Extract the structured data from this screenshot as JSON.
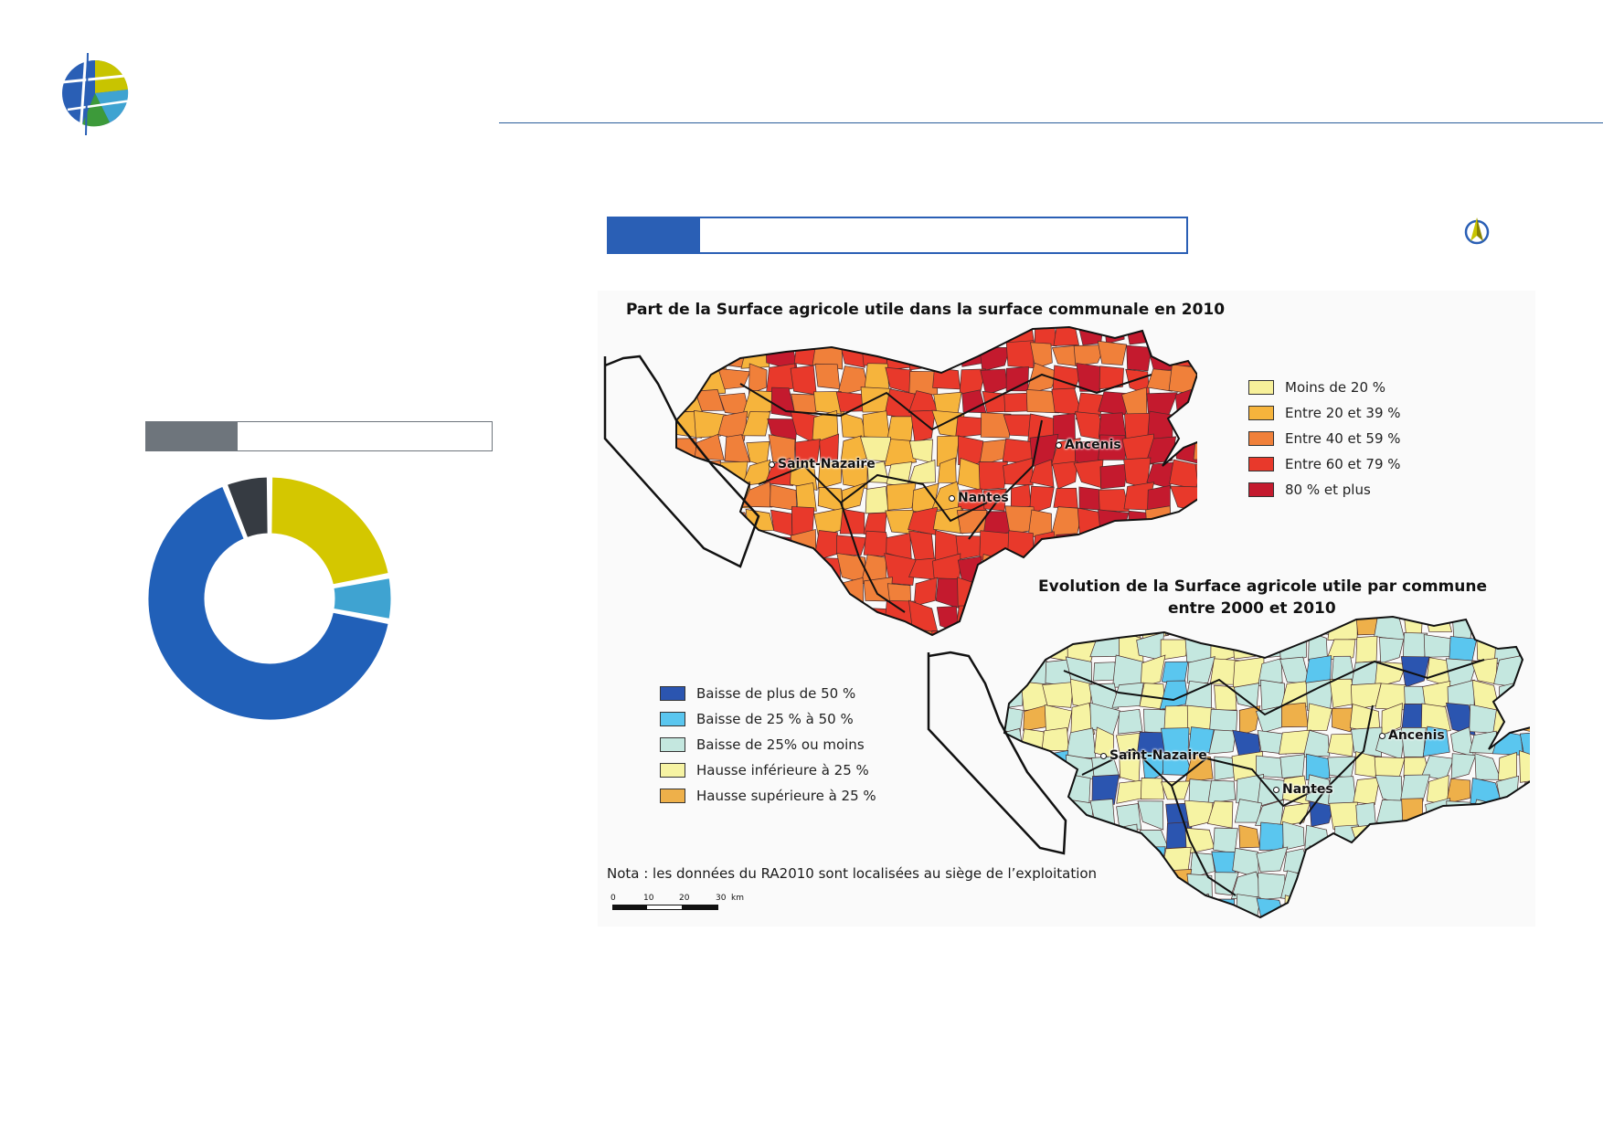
{
  "colors": {
    "header_rule": "#2a5d9a",
    "tag_blue": "#2a5fb5",
    "tag_grey": "#6e757c"
  },
  "donut": {
    "slices": [
      {
        "value": 22,
        "color": "#d4c700"
      },
      {
        "value": 6,
        "color": "#3fa3d1"
      },
      {
        "value": 66,
        "color": "#2160b8"
      },
      {
        "value": 6,
        "color": "#363b42"
      }
    ]
  },
  "map1": {
    "title": "Part de la Surface agricole utile dans la surface communale en 2010",
    "legend": [
      {
        "label": "Moins de 20 %",
        "color": "#f7f09a"
      },
      {
        "label": "Entre 20 et 39 %",
        "color": "#f6b43c"
      },
      {
        "label": "Entre 40 et 59 %",
        "color": "#f0803a"
      },
      {
        "label": "Entre 60 et 79 %",
        "color": "#e8392b"
      },
      {
        "label": "80 % et plus",
        "color": "#c41a2e"
      }
    ],
    "cities": {
      "saint_nazaire": "Saint-Nazaire",
      "nantes": "Nantes",
      "ancenis": "Ancenis"
    }
  },
  "map2": {
    "title_line1": "Evolution de la Surface agricole utile par commune",
    "title_line2": "entre 2000 et 2010",
    "legend": [
      {
        "label": "Baisse de plus de 50 %",
        "color": "#2b55b0"
      },
      {
        "label": "Baisse de 25 % à 50 %",
        "color": "#5ac6ef"
      },
      {
        "label": "Baisse de 25% ou moins",
        "color": "#c4e7df"
      },
      {
        "label": "Hausse inférieure à 25 %",
        "color": "#f6f3a3"
      },
      {
        "label": "Hausse supérieure à 25 %",
        "color": "#eeb04a"
      }
    ],
    "cities": {
      "saint_nazaire": "Saint-Nazaire",
      "nantes": "Nantes",
      "ancenis": "Ancenis"
    }
  },
  "nota": "Nota : les données du RA2010 sont localisées au siège de l’exploitation",
  "scale": {
    "ticks": [
      "0",
      "10",
      "20",
      "30"
    ],
    "unit": "km"
  }
}
